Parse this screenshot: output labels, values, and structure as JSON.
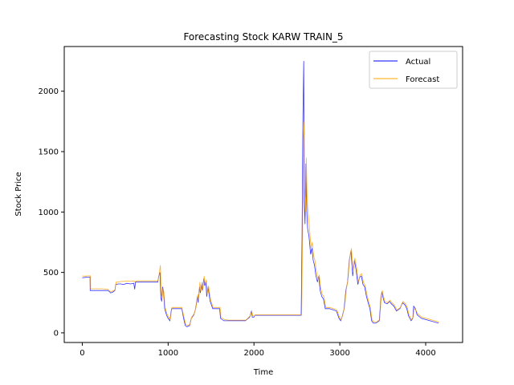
{
  "chart_data": {
    "type": "line",
    "title": "Forecasting Stock KARW TRAIN_5",
    "xlabel": "Time",
    "ylabel": "Stock Price",
    "xlim": [
      -210,
      4430
    ],
    "ylim": [
      -80,
      2370
    ],
    "xticks": [
      0,
      1000,
      2000,
      3000,
      4000
    ],
    "yticks": [
      0,
      500,
      1000,
      1500,
      2000
    ],
    "grid": false,
    "legend": "top-right",
    "series": [
      {
        "name": "Actual",
        "color": "#0000ff",
        "points": [
          [
            0,
            455
          ],
          [
            40,
            460
          ],
          [
            60,
            462
          ],
          [
            90,
            462
          ],
          [
            92,
            350
          ],
          [
            150,
            350
          ],
          [
            230,
            350
          ],
          [
            300,
            350
          ],
          [
            310,
            345
          ],
          [
            330,
            330
          ],
          [
            350,
            335
          ],
          [
            380,
            350
          ],
          [
            390,
            400
          ],
          [
            420,
            405
          ],
          [
            450,
            405
          ],
          [
            480,
            400
          ],
          [
            520,
            410
          ],
          [
            560,
            405
          ],
          [
            600,
            410
          ],
          [
            610,
            360
          ],
          [
            620,
            420
          ],
          [
            680,
            420
          ],
          [
            750,
            420
          ],
          [
            820,
            420
          ],
          [
            880,
            420
          ],
          [
            890,
            470
          ],
          [
            905,
            500
          ],
          [
            915,
            290
          ],
          [
            925,
            260
          ],
          [
            935,
            380
          ],
          [
            945,
            350
          ],
          [
            960,
            200
          ],
          [
            980,
            150
          ],
          [
            1000,
            120
          ],
          [
            1020,
            100
          ],
          [
            1040,
            200
          ],
          [
            1080,
            200
          ],
          [
            1120,
            200
          ],
          [
            1160,
            200
          ],
          [
            1180,
            120
          ],
          [
            1200,
            60
          ],
          [
            1220,
            50
          ],
          [
            1250,
            60
          ],
          [
            1270,
            120
          ],
          [
            1280,
            130
          ],
          [
            1300,
            150
          ],
          [
            1320,
            200
          ],
          [
            1340,
            300
          ],
          [
            1350,
            250
          ],
          [
            1365,
            380
          ],
          [
            1375,
            330
          ],
          [
            1390,
            400
          ],
          [
            1400,
            350
          ],
          [
            1415,
            450
          ],
          [
            1425,
            390
          ],
          [
            1440,
            420
          ],
          [
            1450,
            300
          ],
          [
            1465,
            380
          ],
          [
            1475,
            330
          ],
          [
            1490,
            260
          ],
          [
            1520,
            200
          ],
          [
            1560,
            200
          ],
          [
            1600,
            200
          ],
          [
            1610,
            120
          ],
          [
            1650,
            100
          ],
          [
            1700,
            100
          ],
          [
            1750,
            100
          ],
          [
            1800,
            100
          ],
          [
            1900,
            100
          ],
          [
            1950,
            130
          ],
          [
            1970,
            180
          ],
          [
            1980,
            130
          ],
          [
            2000,
            130
          ],
          [
            2010,
            145
          ],
          [
            2050,
            145
          ],
          [
            2200,
            145
          ],
          [
            2400,
            145
          ],
          [
            2540,
            145
          ],
          [
            2550,
            145
          ],
          [
            2560,
            800
          ],
          [
            2570,
            1800
          ],
          [
            2580,
            2250
          ],
          [
            2585,
            1100
          ],
          [
            2595,
            900
          ],
          [
            2605,
            1400
          ],
          [
            2615,
            1000
          ],
          [
            2625,
            860
          ],
          [
            2640,
            800
          ],
          [
            2660,
            650
          ],
          [
            2675,
            700
          ],
          [
            2690,
            600
          ],
          [
            2705,
            560
          ],
          [
            2720,
            480
          ],
          [
            2740,
            420
          ],
          [
            2755,
            470
          ],
          [
            2770,
            350
          ],
          [
            2790,
            300
          ],
          [
            2810,
            280
          ],
          [
            2830,
            200
          ],
          [
            2880,
            200
          ],
          [
            2920,
            190
          ],
          [
            2960,
            180
          ],
          [
            2990,
            120
          ],
          [
            3010,
            100
          ],
          [
            3030,
            140
          ],
          [
            3050,
            200
          ],
          [
            3070,
            350
          ],
          [
            3090,
            420
          ],
          [
            3110,
            600
          ],
          [
            3130,
            680
          ],
          [
            3150,
            470
          ],
          [
            3170,
            600
          ],
          [
            3190,
            520
          ],
          [
            3210,
            400
          ],
          [
            3230,
            460
          ],
          [
            3250,
            470
          ],
          [
            3270,
            400
          ],
          [
            3290,
            380
          ],
          [
            3310,
            300
          ],
          [
            3330,
            250
          ],
          [
            3350,
            200
          ],
          [
            3370,
            100
          ],
          [
            3390,
            80
          ],
          [
            3420,
            80
          ],
          [
            3460,
            100
          ],
          [
            3480,
            300
          ],
          [
            3490,
            340
          ],
          [
            3500,
            300
          ],
          [
            3520,
            250
          ],
          [
            3550,
            240
          ],
          [
            3580,
            260
          ],
          [
            3600,
            240
          ],
          [
            3630,
            220
          ],
          [
            3660,
            180
          ],
          [
            3700,
            200
          ],
          [
            3730,
            250
          ],
          [
            3760,
            230
          ],
          [
            3780,
            200
          ],
          [
            3800,
            140
          ],
          [
            3830,
            100
          ],
          [
            3850,
            120
          ],
          [
            3860,
            220
          ],
          [
            3880,
            200
          ],
          [
            3900,
            150
          ],
          [
            3950,
            120
          ],
          [
            4000,
            110
          ],
          [
            4050,
            100
          ],
          [
            4100,
            90
          ],
          [
            4150,
            80
          ]
        ]
      },
      {
        "name": "Forecast",
        "color": "#ffa500",
        "points": [
          [
            0,
            470
          ],
          [
            40,
            470
          ],
          [
            60,
            472
          ],
          [
            95,
            472
          ],
          [
            97,
            365
          ],
          [
            150,
            365
          ],
          [
            230,
            365
          ],
          [
            300,
            360
          ],
          [
            310,
            350
          ],
          [
            330,
            340
          ],
          [
            350,
            345
          ],
          [
            380,
            355
          ],
          [
            395,
            420
          ],
          [
            420,
            420
          ],
          [
            450,
            425
          ],
          [
            480,
            425
          ],
          [
            520,
            430
          ],
          [
            560,
            425
          ],
          [
            600,
            430
          ],
          [
            615,
            420
          ],
          [
            625,
            430
          ],
          [
            680,
            430
          ],
          [
            750,
            430
          ],
          [
            820,
            430
          ],
          [
            880,
            430
          ],
          [
            895,
            480
          ],
          [
            910,
            560
          ],
          [
            920,
            320
          ],
          [
            930,
            280
          ],
          [
            940,
            370
          ],
          [
            950,
            340
          ],
          [
            965,
            210
          ],
          [
            985,
            160
          ],
          [
            1005,
            130
          ],
          [
            1025,
            110
          ],
          [
            1045,
            210
          ],
          [
            1080,
            210
          ],
          [
            1120,
            210
          ],
          [
            1160,
            210
          ],
          [
            1185,
            130
          ],
          [
            1205,
            70
          ],
          [
            1225,
            60
          ],
          [
            1255,
            70
          ],
          [
            1275,
            130
          ],
          [
            1285,
            140
          ],
          [
            1305,
            160
          ],
          [
            1325,
            210
          ],
          [
            1345,
            320
          ],
          [
            1355,
            260
          ],
          [
            1370,
            420
          ],
          [
            1380,
            340
          ],
          [
            1395,
            420
          ],
          [
            1405,
            360
          ],
          [
            1420,
            470
          ],
          [
            1430,
            400
          ],
          [
            1445,
            440
          ],
          [
            1455,
            320
          ],
          [
            1470,
            390
          ],
          [
            1480,
            340
          ],
          [
            1495,
            270
          ],
          [
            1525,
            210
          ],
          [
            1565,
            210
          ],
          [
            1605,
            210
          ],
          [
            1615,
            130
          ],
          [
            1655,
            110
          ],
          [
            1705,
            105
          ],
          [
            1755,
            105
          ],
          [
            1805,
            105
          ],
          [
            1905,
            105
          ],
          [
            1955,
            140
          ],
          [
            1975,
            180
          ],
          [
            1985,
            140
          ],
          [
            2005,
            140
          ],
          [
            2015,
            150
          ],
          [
            2055,
            150
          ],
          [
            2200,
            150
          ],
          [
            2400,
            150
          ],
          [
            2540,
            150
          ],
          [
            2555,
            150
          ],
          [
            2565,
            700
          ],
          [
            2575,
            1600
          ],
          [
            2585,
            1750
          ],
          [
            2590,
            1200
          ],
          [
            2600,
            1000
          ],
          [
            2610,
            1450
          ],
          [
            2620,
            1100
          ],
          [
            2630,
            1000
          ],
          [
            2645,
            880
          ],
          [
            2665,
            700
          ],
          [
            2680,
            750
          ],
          [
            2695,
            640
          ],
          [
            2710,
            600
          ],
          [
            2725,
            520
          ],
          [
            2745,
            440
          ],
          [
            2760,
            480
          ],
          [
            2775,
            380
          ],
          [
            2795,
            320
          ],
          [
            2815,
            300
          ],
          [
            2835,
            210
          ],
          [
            2885,
            210
          ],
          [
            2925,
            200
          ],
          [
            2965,
            190
          ],
          [
            2995,
            130
          ],
          [
            3015,
            110
          ],
          [
            3035,
            150
          ],
          [
            3055,
            210
          ],
          [
            3075,
            360
          ],
          [
            3095,
            440
          ],
          [
            3115,
            620
          ],
          [
            3135,
            700
          ],
          [
            3155,
            500
          ],
          [
            3175,
            620
          ],
          [
            3195,
            540
          ],
          [
            3215,
            420
          ],
          [
            3235,
            480
          ],
          [
            3255,
            490
          ],
          [
            3275,
            420
          ],
          [
            3295,
            390
          ],
          [
            3315,
            320
          ],
          [
            3335,
            260
          ],
          [
            3355,
            210
          ],
          [
            3375,
            110
          ],
          [
            3395,
            90
          ],
          [
            3425,
            90
          ],
          [
            3465,
            110
          ],
          [
            3485,
            320
          ],
          [
            3495,
            350
          ],
          [
            3505,
            310
          ],
          [
            3525,
            260
          ],
          [
            3555,
            250
          ],
          [
            3585,
            270
          ],
          [
            3605,
            250
          ],
          [
            3635,
            230
          ],
          [
            3665,
            190
          ],
          [
            3705,
            210
          ],
          [
            3735,
            260
          ],
          [
            3765,
            240
          ],
          [
            3785,
            210
          ],
          [
            3805,
            150
          ],
          [
            3835,
            110
          ],
          [
            3855,
            130
          ],
          [
            3865,
            200
          ],
          [
            3885,
            190
          ],
          [
            3905,
            160
          ],
          [
            3955,
            130
          ],
          [
            4005,
            120
          ],
          [
            4055,
            110
          ],
          [
            4105,
            100
          ],
          [
            4155,
            90
          ]
        ]
      }
    ]
  }
}
